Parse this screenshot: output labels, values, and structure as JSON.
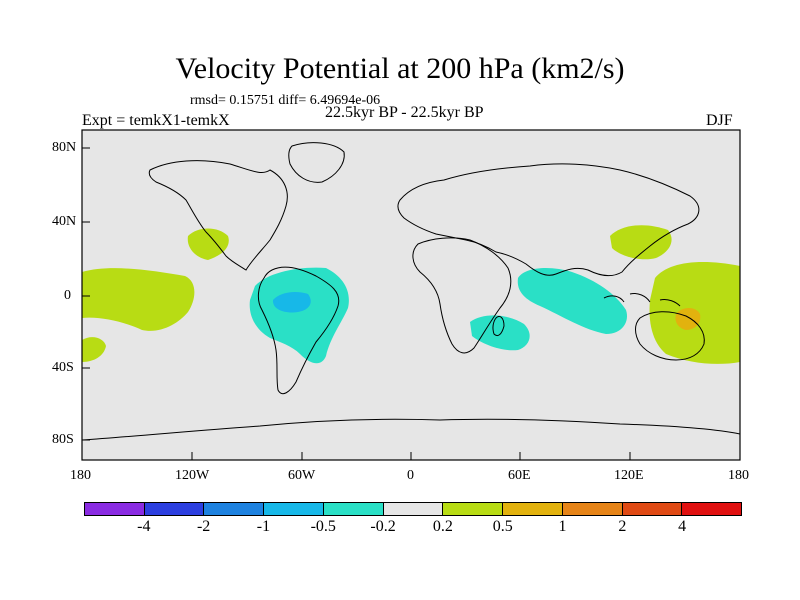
{
  "title": "Velocity Potential at 200 hPa (km2/s)",
  "stats": "rmsd= 0.15751 diff= 6.49694e-06",
  "experiment": "Expt = temkX1-temkX",
  "period": "22.5kyr BP - 22.5kyr BP",
  "season": "DJF",
  "y_ticks": [
    "80N",
    "40N",
    "0",
    "40S",
    "80S"
  ],
  "x_ticks": [
    "180",
    "120W",
    "60W",
    "0",
    "60E",
    "120E",
    "180"
  ],
  "colorbar": {
    "colors": [
      "#8a2be2",
      "#2c3fe0",
      "#1e82e0",
      "#17b8e8",
      "#2ae0c6",
      "#e6e6e6",
      "#b8dc14",
      "#e2b20e",
      "#e68418",
      "#e04a14",
      "#e01010"
    ],
    "labels": [
      "-4",
      "-2",
      "-1",
      "-0.5",
      "-0.2",
      "0.2",
      "0.5",
      "1",
      "2",
      "4"
    ]
  },
  "map": {
    "background_color": "#e6e6e6",
    "anomaly_regions": [
      {
        "name": "east-pacific-positive",
        "level": "0.2-0.5"
      },
      {
        "name": "north-east-pacific-positive",
        "level": "0.2-0.5"
      },
      {
        "name": "south-east-pacific-positive",
        "level": "0.2-0.5"
      },
      {
        "name": "south-america-negative",
        "level": "-0.5--0.2"
      },
      {
        "name": "amazon-core-negative",
        "level": "-1--0.5"
      },
      {
        "name": "indian-ocean-negative",
        "level": "-0.5--0.2"
      },
      {
        "name": "madagascar-negative",
        "level": "-0.5--0.2"
      },
      {
        "name": "east-asia-positive",
        "level": "0.2-0.5"
      },
      {
        "name": "western-pacific-positive",
        "level": "0.2-0.5"
      },
      {
        "name": "new-guinea-core",
        "level": "0.5-1"
      }
    ]
  }
}
